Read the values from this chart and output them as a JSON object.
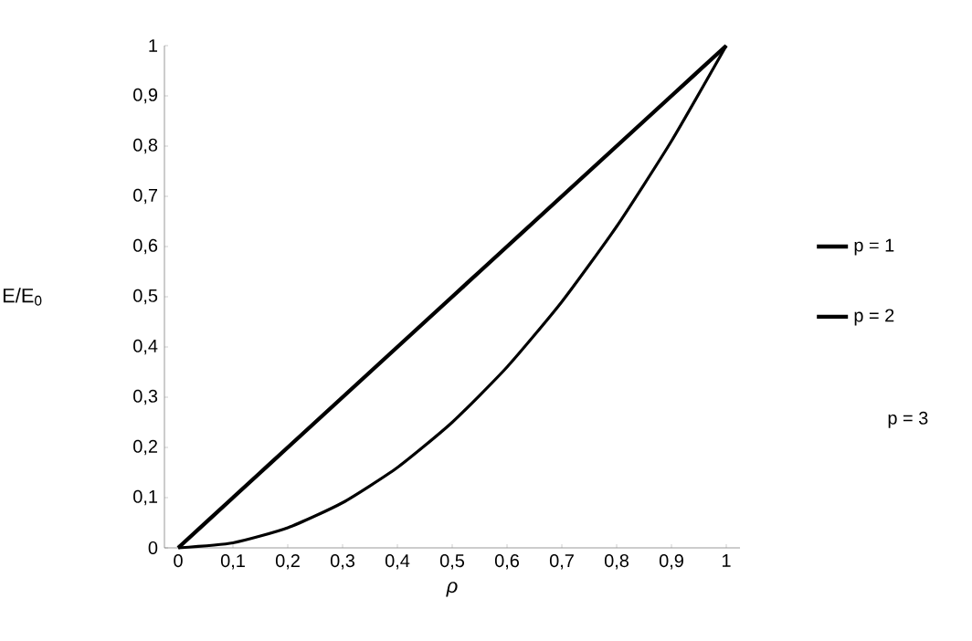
{
  "chart_data": {
    "type": "line",
    "xlabel": "*ρ*",
    "ylabel": "E/E$_{0}$",
    "categories": [
      "0",
      "0,1",
      "0,2",
      "0,3",
      "0,4",
      "0,5",
      "0,6",
      "0,7",
      "0,8",
      "0,9",
      "1"
    ],
    "series": [
      {
        "name": "p = 1",
        "color": "#000000",
        "values": [
          0,
          0.1,
          0.2,
          0.3,
          0.4,
          0.5,
          0.6,
          0.7,
          0.8,
          0.9,
          1
        ]
      },
      {
        "name": "p = 2",
        "color": "#000000",
        "values": [
          0,
          0.01,
          0.04,
          0.09,
          0.16,
          0.25,
          0.36,
          0.49,
          0.64,
          0.81,
          1
        ]
      }
    ],
    "ylim": [
      0,
      1
    ],
    "yticks": [
      0,
      {
        "value": 0.1,
        "label": "0,1"
      },
      {
        "value": 0.2,
        "label": "0,2"
      },
      {
        "value": 0.3,
        "label": "0,3"
      },
      {
        "value": 0.4,
        "label": "0,4"
      },
      {
        "value": 0.5,
        "label": "0,5"
      },
      {
        "value": 0.6,
        "label": "0,6"
      },
      {
        "value": 0.7,
        "label": "0,7"
      },
      {
        "value": 0.8,
        "label": "0,8"
      },
      {
        "value": 0.9,
        "label": "0,9"
      },
      1
    ],
    "annotations": [
      "p = 3"
    ],
    "grid": false,
    "legend": "right",
    "marker": "none",
    "line_style": "solid"
  }
}
